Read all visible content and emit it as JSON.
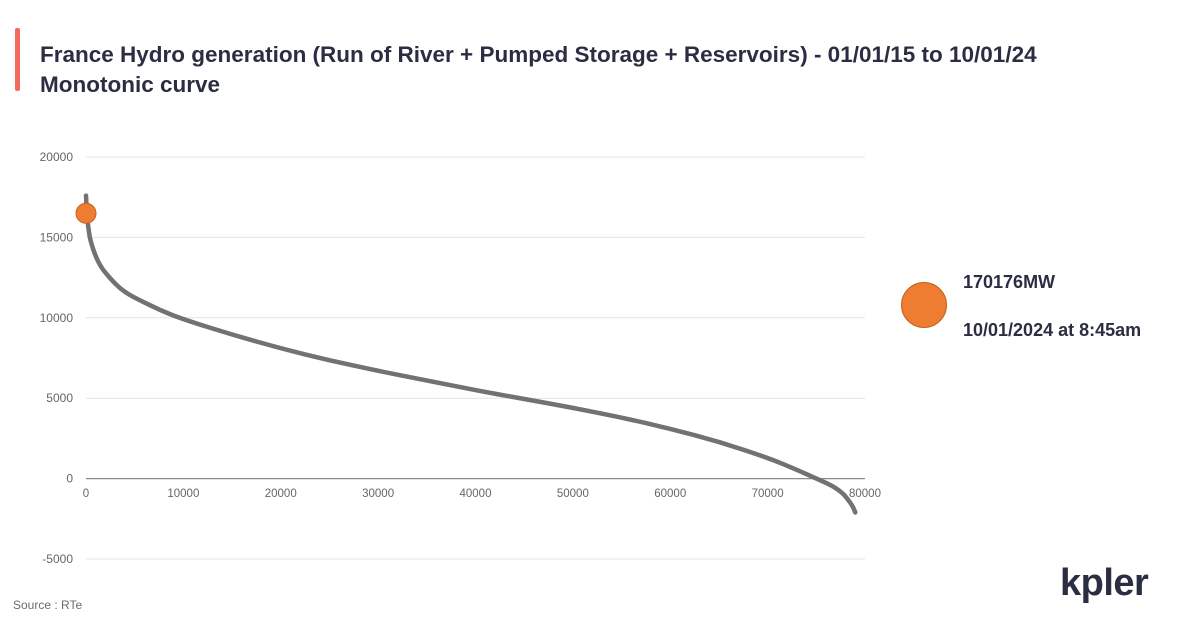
{
  "header": {
    "title_line1": "France Hydro generation (Run of River + Pumped Storage + Reservoirs) - 01/01/15 to 10/01/24",
    "title_line2": "Monotonic curve"
  },
  "legend": {
    "value": "170176MW",
    "timestamp": "10/01/2024 at 8:45am"
  },
  "footer": {
    "source": "Source : RTe",
    "logo": "kpler"
  },
  "colors": {
    "accent_bar": "#f26b5b",
    "curve": "#767171",
    "curve_tail": "#4a6fb5",
    "marker": "#ee7d31",
    "gridline": "#e4e4e4",
    "axis_text": "#666666"
  },
  "chart_data": {
    "type": "line",
    "title": "France Hydro generation (Run of River + Pumped Storage + Reservoirs) - 01/01/15 to 10/01/24 Monotonic curve",
    "xlabel": "",
    "ylabel": "",
    "xlim": [
      0,
      80000
    ],
    "ylim": [
      -5000,
      20000
    ],
    "x_ticks": [
      0,
      10000,
      20000,
      30000,
      40000,
      50000,
      60000,
      70000,
      80000
    ],
    "x_tick_labels": [
      "0",
      "10000",
      "20000",
      "30000",
      "40000",
      "50000",
      "60000",
      "70000",
      "80000"
    ],
    "y_ticks": [
      -5000,
      0,
      5000,
      10000,
      15000,
      20000
    ],
    "y_tick_labels": [
      "-5000",
      "0",
      "5000",
      "10000",
      "15000",
      "20000"
    ],
    "grid": true,
    "series": [
      {
        "x": [
          0,
          100,
          300,
          500,
          1000,
          1500,
          2000,
          3000,
          4000,
          5000,
          7500,
          10000,
          15000,
          20000,
          25000,
          30000,
          35000,
          40000,
          45000,
          50000,
          55000,
          60000,
          65000,
          70000,
          73000,
          75000,
          76500,
          77500,
          78000,
          78300,
          78600,
          78800,
          79000
        ],
        "y": [
          17600,
          16400,
          15300,
          14700,
          13800,
          13200,
          12800,
          12100,
          11600,
          11250,
          10500,
          9900,
          8950,
          8100,
          7350,
          6700,
          6100,
          5500,
          4950,
          4400,
          3800,
          3100,
          2300,
          1300,
          550,
          0,
          -400,
          -800,
          -1100,
          -1350,
          -1600,
          -1800,
          -2100
        ]
      }
    ],
    "highlight_point": {
      "x": 0,
      "y": 16500
    }
  }
}
